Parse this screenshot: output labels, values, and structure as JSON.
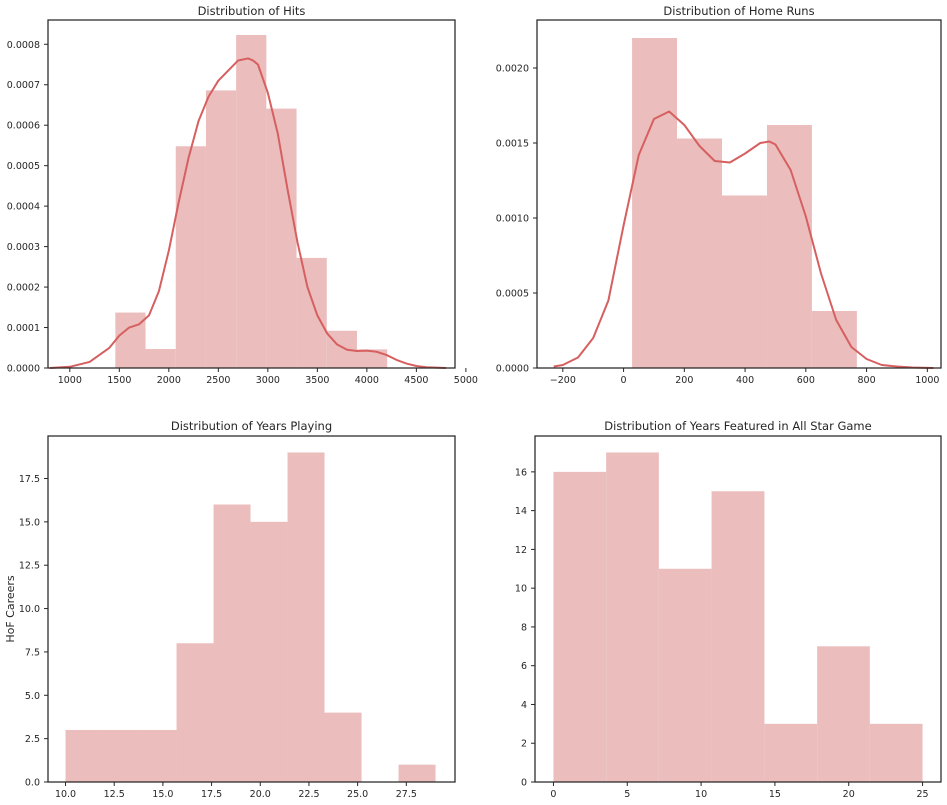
{
  "colors": {
    "bar": "#ebbdbd",
    "kde": "#d65f5f",
    "frame": "#262626",
    "background": "#ffffff"
  },
  "chart_data": [
    {
      "id": "hits",
      "type": "bar",
      "title": "Distribution of Hits",
      "xlabel": "",
      "ylabel": "",
      "xlim": [
        780,
        4890
      ],
      "ylim": [
        0,
        0.00086
      ],
      "xticks": [
        1000,
        1500,
        2000,
        2500,
        3000,
        3500,
        4000,
        4500,
        5000
      ],
      "xtick_labels": [
        "1000",
        "1500",
        "2000",
        "2500",
        "3000",
        "3500",
        "4000",
        "4500",
        "5000"
      ],
      "yticks": [
        0,
        0.0001,
        0.0002,
        0.0003,
        0.0004,
        0.0005,
        0.0006,
        0.0007,
        0.0008
      ],
      "ytick_labels": [
        "0.0000",
        "0.0001",
        "0.0002",
        "0.0003",
        "0.0004",
        "0.0005",
        "0.0006",
        "0.0007",
        "0.0008"
      ],
      "bins": [
        {
          "x0": 1460,
          "x1": 1765,
          "value": 0.000137
        },
        {
          "x0": 1765,
          "x1": 2070,
          "value": 4.7e-05
        },
        {
          "x0": 2070,
          "x1": 2375,
          "value": 0.000548
        },
        {
          "x0": 2375,
          "x1": 2680,
          "value": 0.000686
        },
        {
          "x0": 2680,
          "x1": 2985,
          "value": 0.000823
        },
        {
          "x0": 2985,
          "x1": 3290,
          "value": 0.000641
        },
        {
          "x0": 3290,
          "x1": 3595,
          "value": 0.000272
        },
        {
          "x0": 3595,
          "x1": 3900,
          "value": 9.2e-05
        },
        {
          "x0": 3900,
          "x1": 4205,
          "value": 4.6e-05
        }
      ],
      "kde": {
        "x": [
          800,
          1000,
          1200,
          1400,
          1500,
          1600,
          1700,
          1800,
          1900,
          2000,
          2100,
          2200,
          2300,
          2400,
          2500,
          2600,
          2700,
          2800,
          2850,
          2900,
          3000,
          3100,
          3200,
          3300,
          3400,
          3500,
          3600,
          3700,
          3800,
          3900,
          4000,
          4100,
          4200,
          4300,
          4400,
          4500,
          4600,
          4700,
          4800
        ],
        "y": [
          0.0,
          3e-06,
          1.5e-05,
          5e-05,
          8e-05,
          0.0001,
          0.000108,
          0.00013,
          0.00019,
          0.00029,
          0.00041,
          0.00052,
          0.00061,
          0.00067,
          0.00071,
          0.000735,
          0.00076,
          0.000765,
          0.00076,
          0.00075,
          0.00068,
          0.00058,
          0.00044,
          0.00031,
          0.0002,
          0.00013,
          8.5e-05,
          5.8e-05,
          4.5e-05,
          4.2e-05,
          4.3e-05,
          4e-05,
          3.2e-05,
          2e-05,
          1.1e-05,
          5e-06,
          2e-06,
          1e-06,
          0.0
        ]
      }
    },
    {
      "id": "homeruns",
      "type": "bar",
      "title": "Distribution of Home Runs",
      "xlabel": "",
      "ylabel": "",
      "xlim": [
        -285,
        1045
      ],
      "ylim": [
        0,
        0.00232
      ],
      "xticks": [
        -200,
        0,
        200,
        400,
        600,
        800,
        1000
      ],
      "xtick_labels": [
        "−200",
        "0",
        "200",
        "400",
        "600",
        "800",
        "1000"
      ],
      "yticks": [
        0,
        0.0005,
        0.001,
        0.0015,
        0.002
      ],
      "ytick_labels": [
        "0.0000",
        "0.0005",
        "0.0010",
        "0.0015",
        "0.0020"
      ],
      "bins": [
        {
          "x0": 28,
          "x1": 176,
          "value": 0.0022
        },
        {
          "x0": 176,
          "x1": 324,
          "value": 0.00153
        },
        {
          "x0": 324,
          "x1": 472,
          "value": 0.00115
        },
        {
          "x0": 472,
          "x1": 620,
          "value": 0.00162
        },
        {
          "x0": 620,
          "x1": 768,
          "value": 0.00038
        }
      ],
      "kde": {
        "x": [
          -230,
          -200,
          -150,
          -100,
          -50,
          0,
          50,
          100,
          150,
          200,
          250,
          300,
          350,
          400,
          450,
          480,
          500,
          550,
          600,
          650,
          700,
          750,
          800,
          850,
          900,
          950,
          1000,
          1020
        ],
        "y": [
          1e-05,
          2e-05,
          7e-05,
          0.0002,
          0.00045,
          0.00095,
          0.00142,
          0.00166,
          0.00171,
          0.00162,
          0.00148,
          0.00138,
          0.00137,
          0.00143,
          0.0015,
          0.00151,
          0.00149,
          0.00132,
          0.00101,
          0.00063,
          0.00032,
          0.00014,
          6e-05,
          2e-05,
          1e-05,
          3e-06,
          1e-06,
          0.0
        ]
      }
    },
    {
      "id": "years",
      "type": "bar",
      "title": "Distribution of Years Playing",
      "xlabel": "",
      "ylabel": "HoF Careers",
      "xlim": [
        9.1,
        30.0
      ],
      "ylim": [
        0,
        19.95
      ],
      "xticks": [
        10,
        12.5,
        15,
        17.5,
        20,
        22.5,
        25,
        27.5
      ],
      "xtick_labels": [
        "10.0",
        "12.5",
        "15.0",
        "17.5",
        "20.0",
        "22.5",
        "25.0",
        "27.5"
      ],
      "yticks": [
        0,
        2.5,
        5,
        7.5,
        10,
        12.5,
        15,
        17.5
      ],
      "ytick_labels": [
        "0.0",
        "2.5",
        "5.0",
        "7.5",
        "10.0",
        "12.5",
        "15.0",
        "17.5"
      ],
      "bins": [
        {
          "x0": 10.0,
          "x1": 11.9,
          "value": 3
        },
        {
          "x0": 11.9,
          "x1": 13.8,
          "value": 3
        },
        {
          "x0": 13.8,
          "x1": 15.7,
          "value": 3
        },
        {
          "x0": 15.7,
          "x1": 17.6,
          "value": 8
        },
        {
          "x0": 17.6,
          "x1": 19.5,
          "value": 16
        },
        {
          "x0": 19.5,
          "x1": 21.4,
          "value": 15
        },
        {
          "x0": 21.4,
          "x1": 23.3,
          "value": 19
        },
        {
          "x0": 23.3,
          "x1": 25.2,
          "value": 4
        },
        {
          "x0": 27.1,
          "x1": 29.0,
          "value": 1
        }
      ]
    },
    {
      "id": "allstar",
      "type": "bar",
      "title": "Distribution of Years Featured in All Star Game",
      "xlabel": "",
      "ylabel": "",
      "xlim": [
        -1.25,
        26.25
      ],
      "ylim": [
        0,
        17.85
      ],
      "xticks": [
        0,
        5,
        10,
        15,
        20,
        25
      ],
      "xtick_labels": [
        "0",
        "5",
        "10",
        "15",
        "20",
        "25"
      ],
      "yticks": [
        0,
        2,
        4,
        6,
        8,
        10,
        12,
        14,
        16
      ],
      "ytick_labels": [
        "0",
        "2",
        "4",
        "6",
        "8",
        "10",
        "12",
        "14",
        "16"
      ],
      "bins": [
        {
          "x0": 0.0,
          "x1": 3.57,
          "value": 16
        },
        {
          "x0": 3.57,
          "x1": 7.14,
          "value": 17
        },
        {
          "x0": 7.14,
          "x1": 10.71,
          "value": 11
        },
        {
          "x0": 10.71,
          "x1": 14.29,
          "value": 15
        },
        {
          "x0": 14.29,
          "x1": 17.86,
          "value": 3
        },
        {
          "x0": 17.86,
          "x1": 21.43,
          "value": 7
        },
        {
          "x0": 21.43,
          "x1": 25.0,
          "value": 3
        }
      ]
    }
  ]
}
